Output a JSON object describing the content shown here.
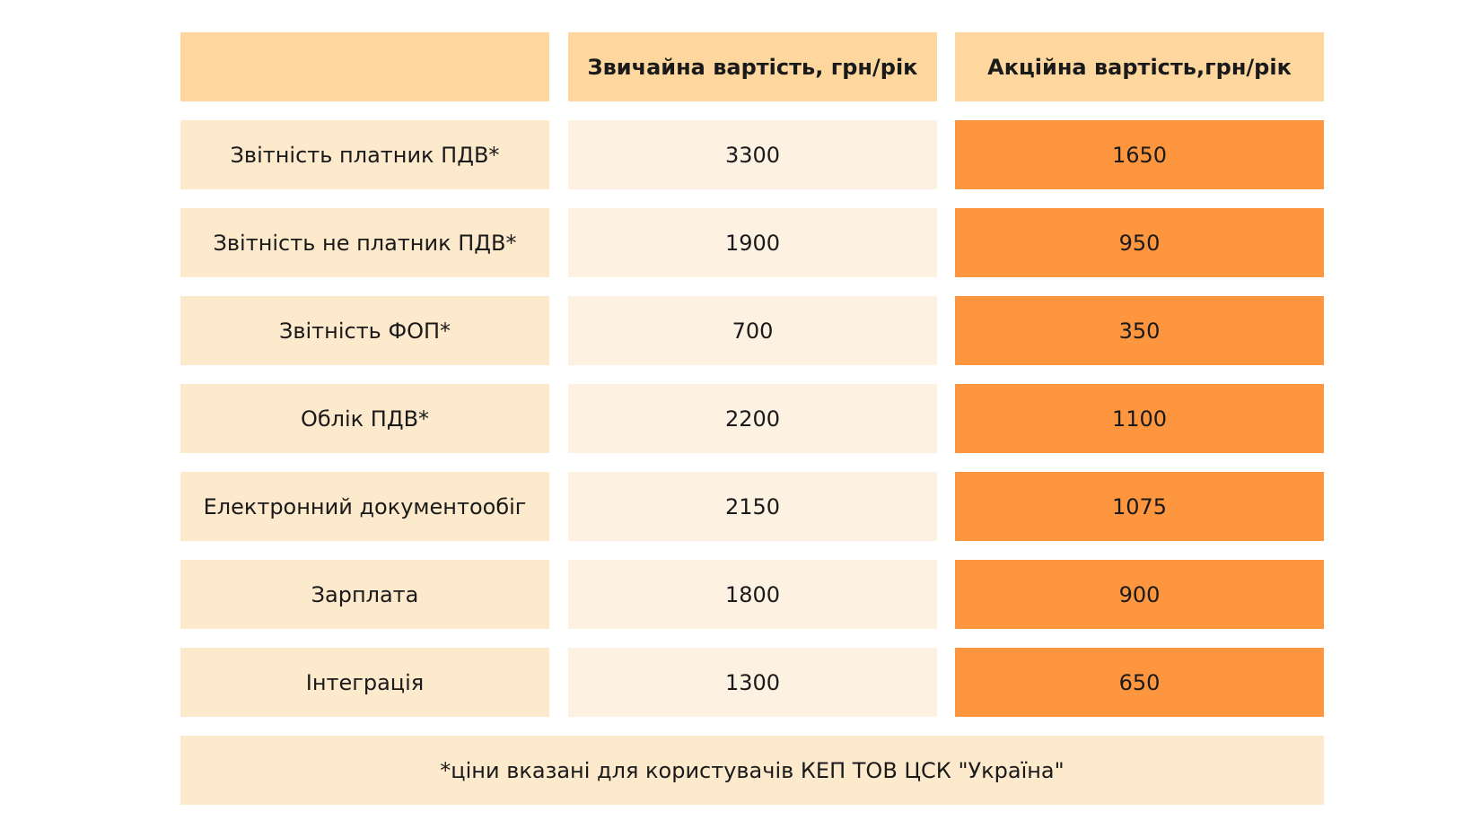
{
  "header": {
    "empty": "",
    "regular_price": "Звичайна вартість, грн/рік",
    "promo_price": "Акційна вартість,грн/рік"
  },
  "rows": [
    {
      "label": "Звітність платник ПДВ*",
      "regular": "3300",
      "promo": "1650"
    },
    {
      "label": "Звітність не платник ПДВ*",
      "regular": "1900",
      "promo": "950"
    },
    {
      "label": "Звітність ФОП*",
      "regular": "700",
      "promo": "350"
    },
    {
      "label": "Облік ПДВ*",
      "regular": "2200",
      "promo": "1100"
    },
    {
      "label": "Електронний документообіг",
      "regular": "2150",
      "promo": "1075"
    },
    {
      "label": "Зарплата",
      "regular": "1800",
      "promo": "900"
    },
    {
      "label": "Інтеграція",
      "regular": "1300",
      "promo": "650"
    }
  ],
  "footnote": "*ціни вказані для користувачів КЕП ТОВ ЦСК \"Україна\"",
  "colors": {
    "header_bg": "#fdd79e",
    "label_bg": "#fde9cc",
    "regular_bg": "#fdf1e1",
    "promo_bg": "#fd963f"
  }
}
